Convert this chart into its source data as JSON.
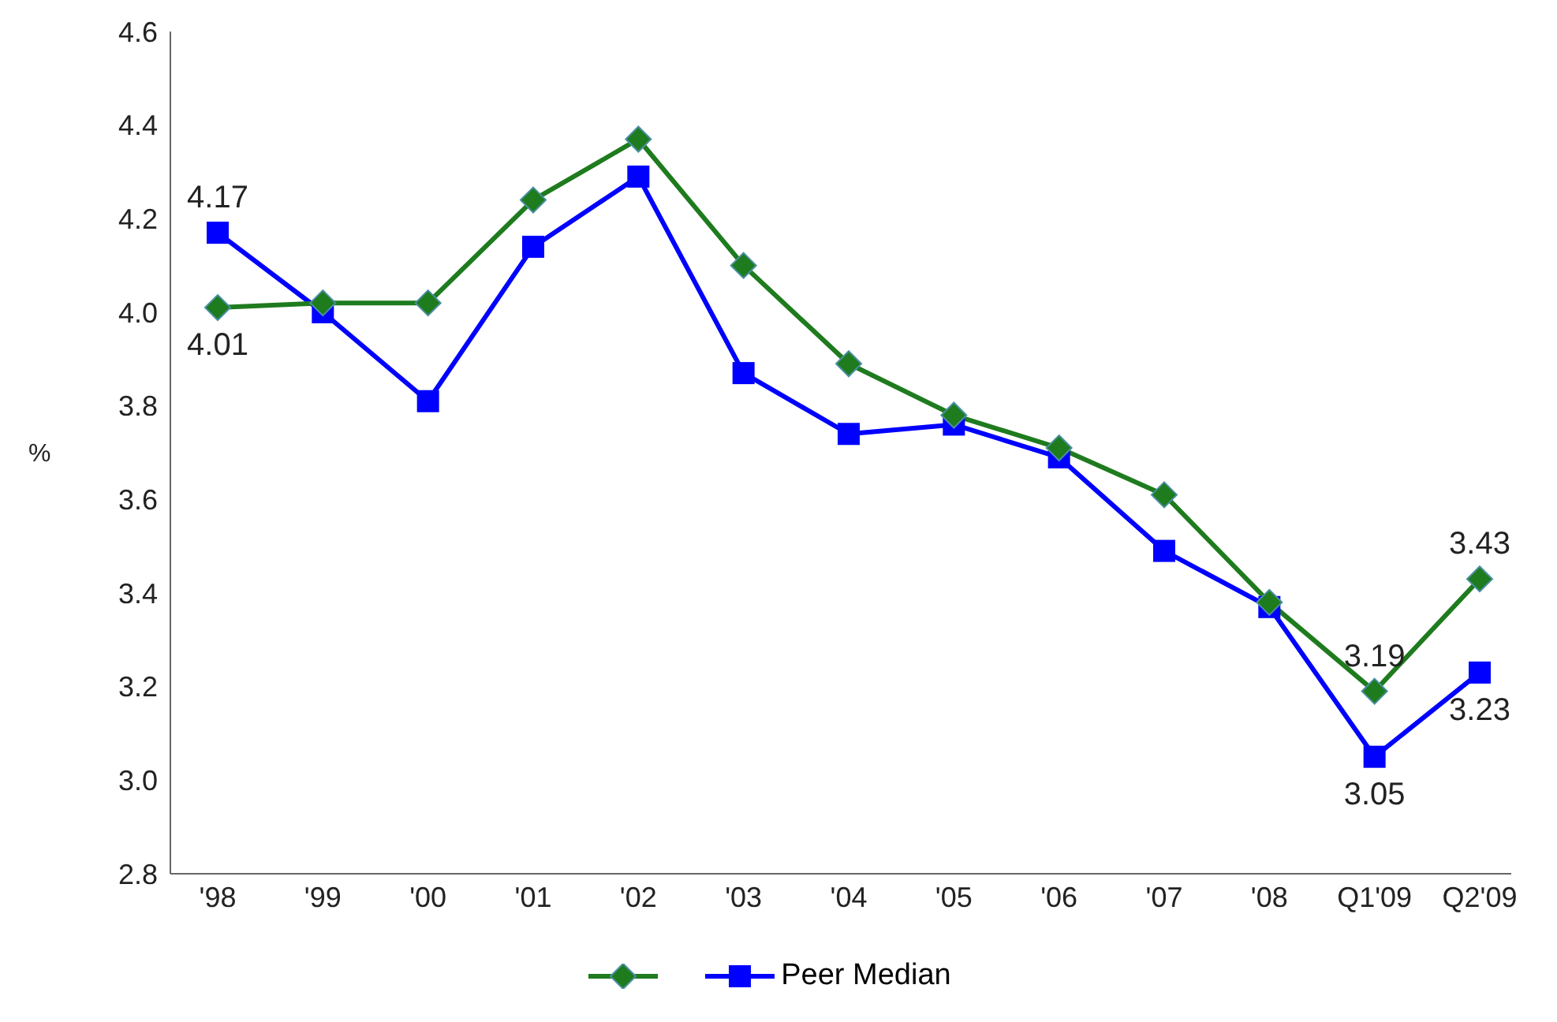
{
  "chart_data": {
    "type": "line",
    "ylabel": "%",
    "categories": [
      "'98",
      "'99",
      "'00",
      "'01",
      "'02",
      "'03",
      "'04",
      "'05",
      "'06",
      "'07",
      "'08",
      "Q1'09",
      "Q2'09"
    ],
    "ylim": [
      2.8,
      4.6
    ],
    "yticks": [
      2.8,
      {
        "value": 3.0,
        "label": "3.0"
      },
      3.2,
      3.4,
      3.6,
      3.8,
      {
        "value": 4.0,
        "label": "4.0"
      },
      4.2,
      4.4,
      4.6
    ],
    "grid": false,
    "legend": "bottom",
    "series": [
      {
        "color": "#1e7b1e",
        "marker": "diamond",
        "values": [
          4.01,
          4.02,
          4.02,
          4.24,
          4.37,
          4.1,
          3.89,
          3.78,
          3.71,
          3.61,
          3.38,
          3.19,
          3.43
        ],
        "value_labels": [
          "4.01",
          null,
          null,
          null,
          null,
          null,
          null,
          null,
          null,
          null,
          null,
          "3.19",
          "3.43"
        ]
      },
      {
        "name": "Peer Median",
        "color": "#0000ff",
        "marker": "square",
        "values": [
          4.17,
          4.0,
          3.81,
          4.14,
          4.29,
          3.87,
          3.74,
          3.76,
          3.69,
          3.49,
          3.37,
          3.05,
          3.23
        ],
        "value_labels": [
          "4.17",
          null,
          null,
          null,
          null,
          null,
          null,
          null,
          null,
          null,
          null,
          "3.05",
          "3.23"
        ]
      }
    ]
  }
}
